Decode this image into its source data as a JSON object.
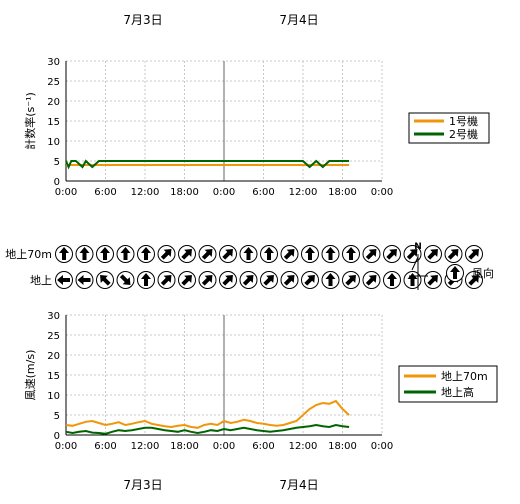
{
  "dates": [
    "7月3日",
    "7月4日"
  ],
  "time_ticks": [
    "0:00",
    "6:00",
    "12:00",
    "18:00",
    "0:00",
    "6:00",
    "12:00",
    "18:00",
    "0:00"
  ],
  "colors": {
    "orange": "#f0960a",
    "green": "#006400",
    "grid": "#c8c8c8"
  },
  "compass": {
    "north_label": "N"
  },
  "wind_direction": {
    "rows": [
      {
        "label": "地上70m",
        "arrows": [
          "n",
          "n",
          "n",
          "n",
          "n",
          "ne",
          "ne",
          "ne",
          "ne",
          "n",
          "n",
          "ne",
          "n",
          "n",
          "n",
          "ne",
          "ne",
          "ne",
          "ne",
          "ne",
          "ne"
        ]
      },
      {
        "label": "地上",
        "arrows": [
          "w",
          "w",
          "nw",
          "se",
          "n",
          "ne",
          "ne",
          "ne",
          "ne",
          "ne",
          "ne",
          "ne",
          "ne",
          "n",
          "ne",
          "ne",
          "n",
          "n",
          "ne",
          "ne",
          "ne"
        ]
      }
    ],
    "legend_label": "風向",
    "legend_arrow": "n"
  },
  "chart_data": [
    {
      "type": "line",
      "ylabel": "計数率(s⁻¹)",
      "ylim": [
        0,
        30
      ],
      "yticks": [
        0,
        5,
        10,
        15,
        20,
        25,
        30
      ],
      "x_hours_range": [
        0,
        48
      ],
      "series": [
        {
          "name": "1号機",
          "color": "#f0960a",
          "x": [
            0,
            6,
            12,
            18,
            24,
            30,
            36,
            43
          ],
          "values": [
            4,
            4,
            4,
            4,
            4,
            4,
            4,
            4
          ]
        },
        {
          "name": "2号機",
          "color": "#006400",
          "x": [
            0,
            0.4,
            0.8,
            1.5,
            2.5,
            3,
            4,
            5,
            6,
            9,
            12,
            15,
            18,
            21,
            24,
            27,
            30,
            33,
            36,
            37,
            38,
            39,
            40,
            41,
            43
          ],
          "values": [
            5,
            3.5,
            5,
            5,
            3.5,
            5,
            3.5,
            5,
            5,
            5,
            5,
            5,
            5,
            5,
            5,
            5,
            5,
            5,
            5,
            3.5,
            5,
            3.5,
            5,
            5,
            5
          ]
        }
      ]
    },
    {
      "type": "line",
      "ylabel": "風速(m/s)",
      "ylim": [
        0,
        30
      ],
      "yticks": [
        0,
        5,
        10,
        15,
        20,
        25,
        30
      ],
      "x_hours_range": [
        0,
        48
      ],
      "series": [
        {
          "name": "地上70m",
          "color": "#f0960a",
          "x": [
            0,
            1,
            2,
            3,
            4,
            5,
            6,
            7,
            8,
            9,
            10,
            11,
            12,
            13,
            14,
            15,
            16,
            17,
            18,
            19,
            20,
            21,
            22,
            23,
            24,
            25,
            26,
            27,
            28,
            29,
            30,
            31,
            32,
            33,
            34,
            35,
            36,
            37,
            38,
            39,
            40,
            41,
            42,
            43
          ],
          "values": [
            2.5,
            2.3,
            2.8,
            3.3,
            3.5,
            3,
            2.5,
            2.8,
            3.2,
            2.5,
            2.8,
            3.2,
            3.5,
            2.8,
            2.5,
            2.2,
            2,
            2.3,
            2.5,
            2,
            1.8,
            2.5,
            2.8,
            2.5,
            3.5,
            3,
            3.3,
            3.8,
            3.5,
            3,
            2.8,
            2.5,
            2.3,
            2.5,
            3,
            3.5,
            5,
            6.5,
            7.5,
            8,
            7.8,
            8.5,
            6.5,
            5
          ]
        },
        {
          "name": "地上高",
          "color": "#006400",
          "x": [
            0,
            1,
            2,
            3,
            4,
            5,
            6,
            7,
            8,
            9,
            10,
            11,
            12,
            13,
            14,
            15,
            16,
            17,
            18,
            19,
            20,
            21,
            22,
            23,
            24,
            25,
            26,
            27,
            28,
            29,
            30,
            31,
            32,
            33,
            34,
            35,
            36,
            37,
            38,
            39,
            40,
            41,
            42,
            43
          ],
          "values": [
            0.8,
            0.5,
            0.8,
            1,
            0.6,
            0.5,
            0.3,
            0.8,
            1.2,
            1,
            1.2,
            1.5,
            1.8,
            1.8,
            1.5,
            1.2,
            1,
            0.8,
            1.2,
            0.8,
            0.5,
            0.8,
            1.2,
            1,
            1.5,
            1.2,
            1.5,
            1.8,
            1.5,
            1.2,
            1,
            0.8,
            1,
            1.2,
            1.5,
            1.8,
            2,
            2.2,
            2.5,
            2.2,
            2,
            2.5,
            2.2,
            2
          ]
        }
      ]
    }
  ]
}
